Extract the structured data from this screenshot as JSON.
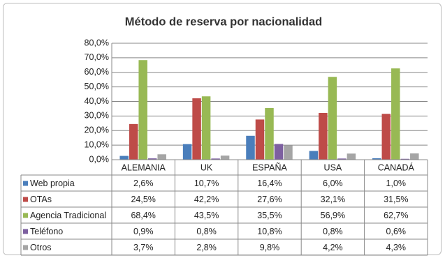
{
  "chart_data": {
    "type": "bar",
    "title": "Método de reserva por nacionalidad",
    "categories": [
      "ALEMANIA",
      "UK",
      "ESPAÑA",
      "USA",
      "CANADÁ"
    ],
    "series": [
      {
        "name": "Web propia",
        "color": "#4a7ebb",
        "values": [
          2.6,
          10.7,
          16.4,
          6.0,
          1.0
        ],
        "value_labels": [
          "2,6%",
          "10,7%",
          "16,4%",
          "6,0%",
          "1,0%"
        ]
      },
      {
        "name": "OTAs",
        "color": "#be4b48",
        "values": [
          24.5,
          42.2,
          27.6,
          32.1,
          31.5
        ],
        "value_labels": [
          "24,5%",
          "42,2%",
          "27,6%",
          "32,1%",
          "31,5%"
        ]
      },
      {
        "name": "Agencia Tradicional",
        "color": "#98b954",
        "values": [
          68.4,
          43.5,
          35.5,
          56.9,
          62.7
        ],
        "value_labels": [
          "68,4%",
          "43,5%",
          "35,5%",
          "56,9%",
          "62,7%"
        ]
      },
      {
        "name": "Teléfono",
        "color": "#7d60a0",
        "values": [
          0.9,
          0.8,
          10.8,
          0.8,
          0.6
        ],
        "value_labels": [
          "0,9%",
          "0,8%",
          "10,8%",
          "0,8%",
          "0,6%"
        ]
      },
      {
        "name": "Otros",
        "color": "#a5a5a5",
        "values": [
          3.7,
          2.8,
          9.8,
          4.2,
          4.3
        ],
        "value_labels": [
          "3,7%",
          "2,8%",
          "9,8%",
          "4,2%",
          "4,3%"
        ]
      }
    ],
    "ylim": [
      0,
      80
    ],
    "yticks": [
      {
        "value": 0,
        "label": "0,0%"
      },
      {
        "value": 10,
        "label": "10,0%"
      },
      {
        "value": 20,
        "label": "20,0%"
      },
      {
        "value": 30,
        "label": "30,0%"
      },
      {
        "value": 40,
        "label": "40,0%"
      },
      {
        "value": 50,
        "label": "50,0%"
      },
      {
        "value": 60,
        "label": "60,0%"
      },
      {
        "value": 70,
        "label": "70,0%"
      },
      {
        "value": 80,
        "label": "80,0%"
      }
    ],
    "grid": true
  }
}
